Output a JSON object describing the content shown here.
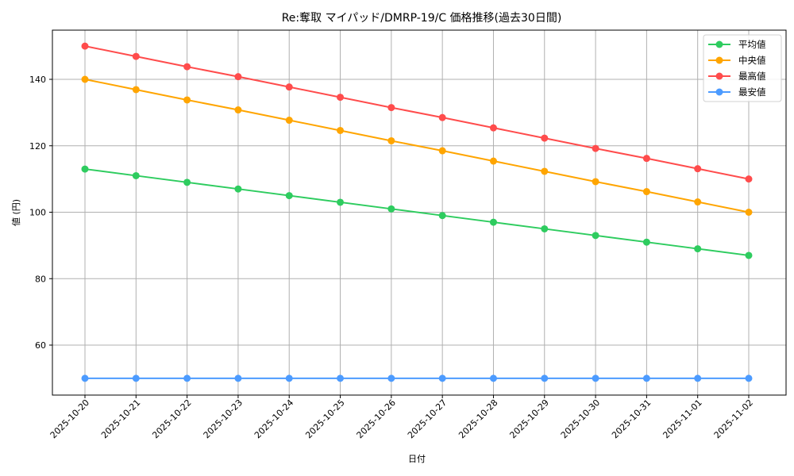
{
  "chart_data": {
    "type": "line",
    "title": "Re:奪取 マイパッド/DMRP-19/C 価格推移(過去30日間)",
    "xlabel": "日付",
    "ylabel": "値 (円)",
    "ylim": [
      45,
      155
    ],
    "yticks": [
      60,
      80,
      100,
      120,
      140
    ],
    "grid": true,
    "legend_position": "upper right",
    "categories": [
      "2025-10-20",
      "2025-10-21",
      "2025-10-22",
      "2025-10-23",
      "2025-10-24",
      "2025-10-25",
      "2025-10-26",
      "2025-10-27",
      "2025-10-28",
      "2025-10-29",
      "2025-10-30",
      "2025-10-31",
      "2025-11-01",
      "2025-11-02"
    ],
    "series": [
      {
        "name": "平均値",
        "color": "#2ecc5f",
        "values": [
          113,
          111,
          109,
          107,
          105,
          103,
          101,
          99,
          97,
          95,
          93,
          91,
          89,
          87
        ]
      },
      {
        "name": "中央値",
        "color": "#ffa500",
        "values": [
          140,
          136.9,
          133.8,
          130.8,
          127.7,
          124.6,
          121.5,
          118.5,
          115.4,
          112.3,
          109.2,
          106.2,
          103.1,
          100
        ]
      },
      {
        "name": "最高値",
        "color": "#ff4c4c",
        "values": [
          150,
          146.9,
          143.8,
          140.8,
          137.7,
          134.6,
          131.5,
          128.5,
          125.4,
          122.3,
          119.2,
          116.2,
          113.1,
          110
        ]
      },
      {
        "name": "最安値",
        "color": "#4c9bff",
        "values": [
          50,
          50,
          50,
          50,
          50,
          50,
          50,
          50,
          50,
          50,
          50,
          50,
          50,
          50
        ]
      }
    ]
  }
}
